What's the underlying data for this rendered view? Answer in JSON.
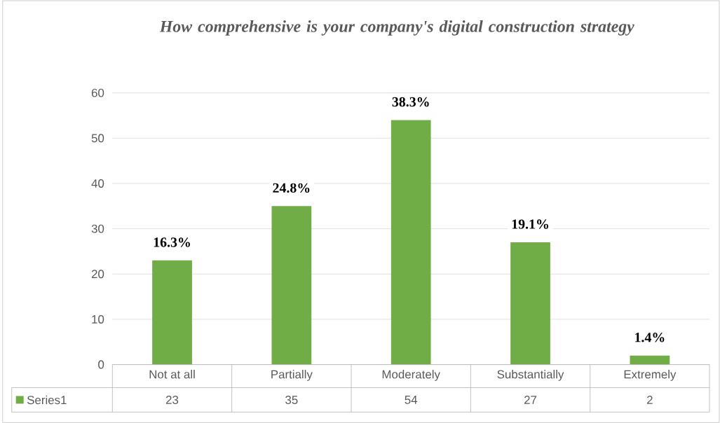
{
  "chart_data": {
    "type": "bar",
    "title": "How comprehensive is your company's digital construction strategy",
    "categories": [
      "Not at all",
      "Partially",
      "Moderately",
      "Substantially",
      "Extremely"
    ],
    "series": [
      {
        "name": "Series1",
        "color": "#70ad47",
        "values": [
          23,
          35,
          54,
          27,
          2
        ],
        "value_labels": [
          "23",
          "35",
          "54",
          "27",
          "2"
        ]
      }
    ],
    "annotations": [
      {
        "text": "16.3%",
        "x": "Not at all",
        "y": 23
      },
      {
        "text": "24.8%",
        "x": "Partially",
        "y": 35
      },
      {
        "text": "38.3%",
        "x": "Moderately",
        "y": 54
      },
      {
        "text": "19.1%",
        "x": "Substantially",
        "y": 27
      },
      {
        "text": "1.4%",
        "x": "Extremely",
        "y": 2
      }
    ],
    "ylim": [
      0,
      60
    ],
    "yticks": [
      0,
      10,
      20,
      30,
      40,
      50,
      60
    ],
    "grid": "y",
    "legend": "bottom"
  }
}
